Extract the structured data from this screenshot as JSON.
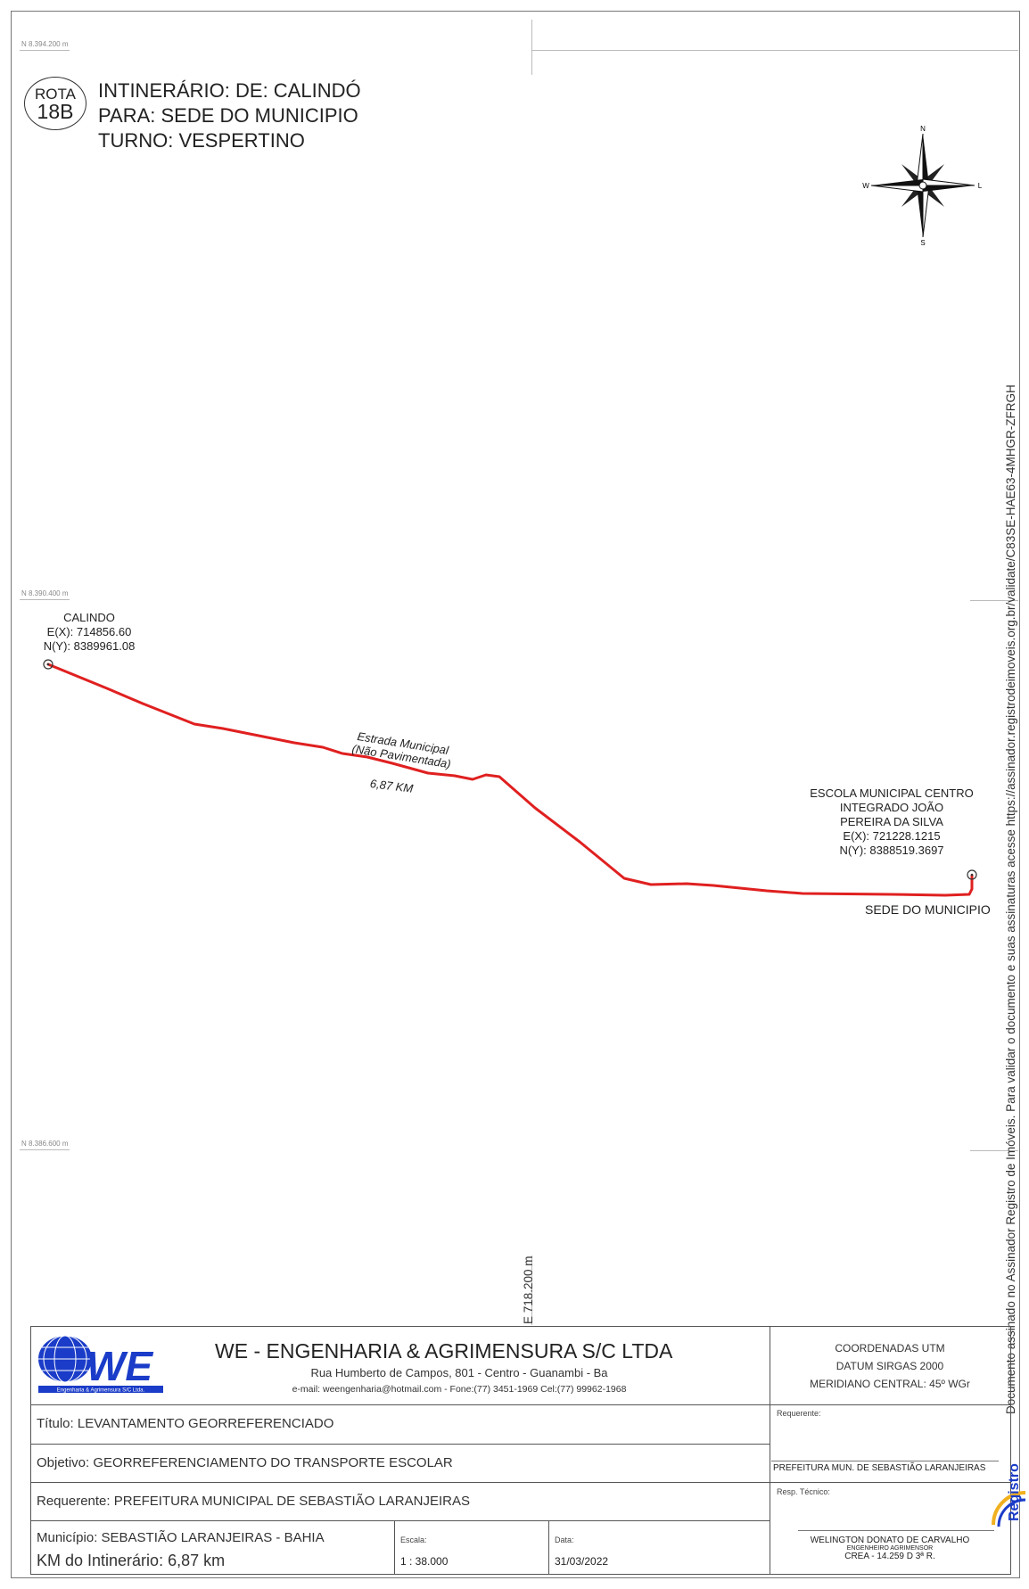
{
  "grid": {
    "north_top": "N 8.394.200 m",
    "north_mid": "N 8.390.400 m",
    "north_low": "N 8.386.600 m",
    "east_label": "E 718.200 m"
  },
  "header": {
    "rota_line1": "ROTA",
    "rota_line2": "18B",
    "line1": "INTINERÁRIO: DE: CALINDÓ",
    "line2": "PARA: SEDE DO MUNICIPIO",
    "line3": "TURNO: VESPERTINO"
  },
  "compass": {
    "n": "N",
    "s": "S",
    "e": "L",
    "w": "W"
  },
  "route": {
    "color": "#e02020",
    "road_name_1": "Estrada Municipal",
    "road_name_2": "(Não Pavimentada)",
    "distance": "6,87 KM"
  },
  "start_point": {
    "name": "CALINDO",
    "ex": "E(X): 714856.60",
    "ny": "N(Y): 8389961.08"
  },
  "end_point": {
    "name1": "ESCOLA MUNICIPAL CENTRO",
    "name2": "INTEGRADO JOÃO",
    "name3": "PEREIRA DA SILVA",
    "ex": "E(X): 721228.1215",
    "ny": "N(Y): 8388519.3697",
    "place": "SEDE DO MUNICIPIO"
  },
  "side_note": "Documento assinado no Assinador Registro de Imóveis. Para validar o documento e suas assinaturas acesse https://assinador.registrodeimoveis.org.br/validate/C83SE-HAE63-4MHGR-ZFRGH",
  "title_block": {
    "logo_text": "WE",
    "logo_sub": "Engenharia & Agrimensura S/C Ltda.",
    "company": "WE - ENGENHARIA & AGRIMENSURA S/C LTDA",
    "address": "Rua Humberto de Campos, 801 - Centro - Guanambi - Ba",
    "contact": "e-mail: weengenharia@hotmail.com - Fone:(77) 3451-1969  Cel:(77) 99962-1968",
    "utm1": "COORDENADAS UTM",
    "utm2": "DATUM SIRGAS 2000",
    "utm3": "MERIDIANO CENTRAL: 45º WGr",
    "titulo": "Título: LEVANTAMENTO GEORREFERENCIADO",
    "objetivo": "Objetivo: GEORREFERENCIAMENTO DO TRANSPORTE ESCOLAR",
    "requerente": "Requerente: PREFEITURA MUNICIPAL DE SEBASTIÃO LARANJEIRAS",
    "municipio": "Município: SEBASTIÃO LARANJEIRAS  -  BAHIA",
    "km": "KM do Intinerário: 6,87 km",
    "escala_label": "Escala:",
    "escala": "1 : 38.000",
    "data_label": "Data:",
    "data": "31/03/2022",
    "req_label": "Requerente:",
    "req_value": "PREFEITURA MUN. DE SEBASTIÃO LARANJEIRAS",
    "resp_label": "Resp. Técnico:",
    "resp_name": "WELINGTON DONATO DE CARVALHO",
    "resp_title": "ENGENHEIRO AGRIMENSOR",
    "resp_crea": "CREA - 14.259 D 3ª R.",
    "stamp": "Registro"
  }
}
